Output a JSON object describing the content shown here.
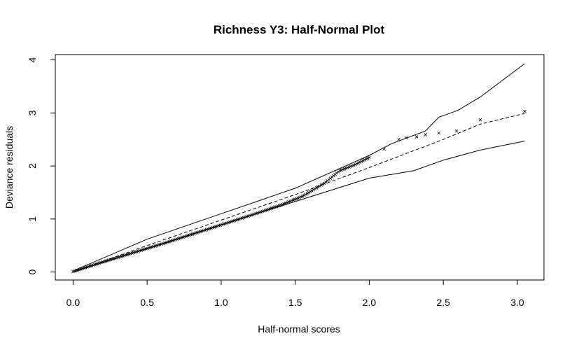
{
  "chart_data": {
    "type": "scatter",
    "title": "Richness Y3: Half-Normal Plot",
    "xlabel": "Half-normal scores",
    "ylabel": "Deviance residuals",
    "xlim": [
      -0.12,
      3.18
    ],
    "ylim": [
      -0.15,
      4.1
    ],
    "x_ticks": [
      "0.0",
      "0.5",
      "1.0",
      "1.5",
      "2.0",
      "2.5",
      "3.0"
    ],
    "y_ticks": [
      "0",
      "1",
      "2",
      "3",
      "4"
    ],
    "grid": false,
    "legend": "none",
    "marker": "x",
    "point_count": 200,
    "series": [
      {
        "role": "points",
        "x": [
          0.0,
          0.2,
          0.4,
          0.6,
          0.8,
          1.0,
          1.2,
          1.4,
          1.55,
          1.7,
          1.8,
          1.9,
          2.0,
          2.1,
          2.2,
          2.25,
          2.32,
          2.38,
          2.47,
          2.59,
          2.75,
          3.05
        ],
        "y": [
          0.01,
          0.19,
          0.36,
          0.53,
          0.71,
          0.89,
          1.07,
          1.26,
          1.43,
          1.68,
          1.91,
          2.02,
          2.16,
          2.32,
          2.5,
          2.53,
          2.55,
          2.59,
          2.62,
          2.66,
          2.87,
          3.03
        ]
      },
      {
        "role": "upper-envelope",
        "x": [
          0.0,
          0.5,
          1.0,
          1.5,
          2.0,
          2.15,
          2.38,
          2.47,
          2.6,
          2.75,
          3.05
        ],
        "y": [
          0.02,
          0.62,
          1.1,
          1.58,
          2.2,
          2.42,
          2.66,
          2.92,
          3.05,
          3.3,
          3.93
        ]
      },
      {
        "role": "median-reference",
        "x": [
          0.0,
          0.5,
          1.0,
          1.5,
          2.0,
          2.5,
          2.75,
          3.05
        ],
        "y": [
          0.0,
          0.5,
          0.98,
          1.46,
          1.97,
          2.5,
          2.79,
          2.99
        ]
      },
      {
        "role": "lower-envelope",
        "x": [
          0.0,
          0.5,
          1.0,
          1.5,
          2.0,
          2.3,
          2.5,
          2.75,
          3.05
        ],
        "y": [
          0.0,
          0.44,
          0.89,
          1.33,
          1.77,
          1.91,
          2.11,
          2.3,
          2.47
        ]
      }
    ]
  }
}
